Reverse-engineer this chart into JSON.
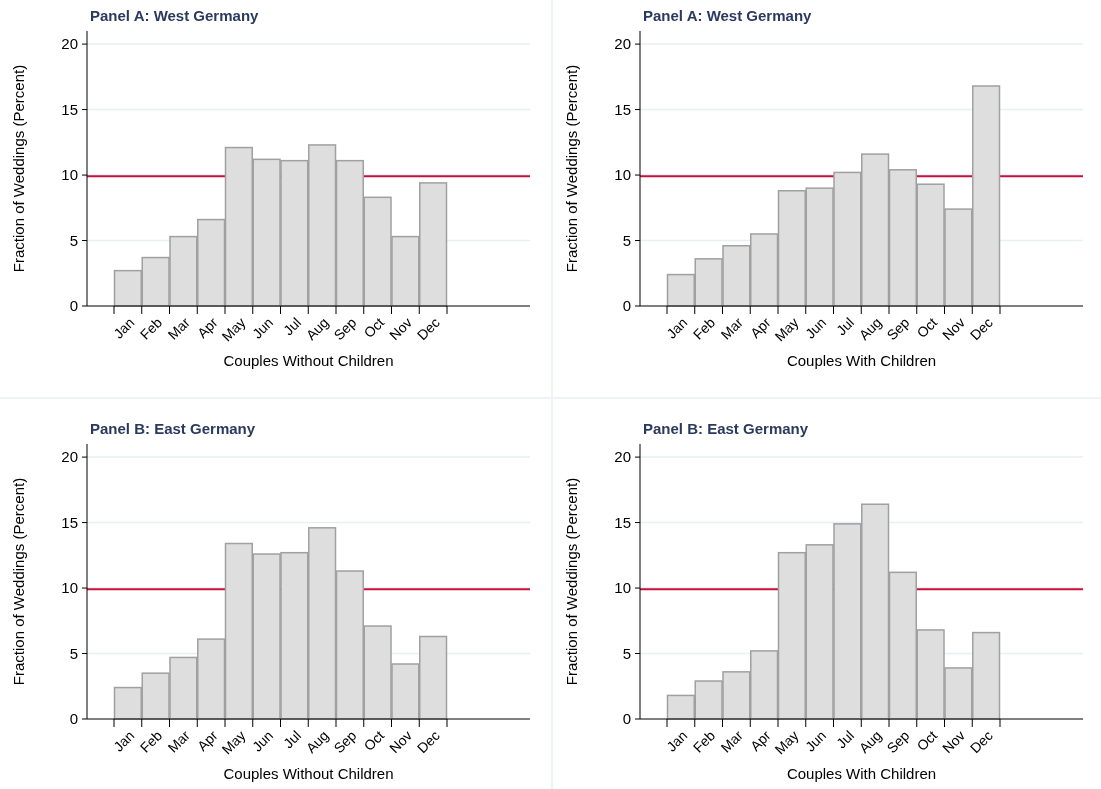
{
  "chart_data": [
    {
      "type": "bar",
      "title": "Panel A: West Germany",
      "xlabel": "Couples Without Children",
      "ylabel": "Fraction of Weddings (Percent)",
      "categories": [
        "Jan",
        "Feb",
        "Mar",
        "Apr",
        "May",
        "Jun",
        "Jul",
        "Aug",
        "Sep",
        "Oct",
        "Nov",
        "Dec"
      ],
      "values": [
        2.7,
        3.7,
        5.3,
        6.6,
        12.1,
        11.2,
        11.1,
        12.3,
        11.1,
        8.3,
        5.3,
        9.4
      ],
      "color": "#dedede",
      "ylim": [
        0,
        21
      ],
      "yticks": [
        0,
        5,
        10,
        15,
        20
      ],
      "grid": "y",
      "ref_lines": [
        {
          "axis": "y",
          "value": 9.9,
          "color": "#c8103c"
        }
      ]
    },
    {
      "type": "bar",
      "title": "Panel A: West Germany",
      "xlabel": "Couples With Children",
      "ylabel": "Fraction of Weddings (Percent)",
      "categories": [
        "Jan",
        "Feb",
        "Mar",
        "Apr",
        "May",
        "Jun",
        "Jul",
        "Aug",
        "Sep",
        "Oct",
        "Nov",
        "Dec"
      ],
      "values": [
        2.4,
        3.6,
        4.6,
        5.5,
        8.8,
        9.0,
        10.2,
        11.6,
        10.4,
        9.3,
        7.4,
        16.8
      ],
      "color": "#dedede",
      "ylim": [
        0,
        21
      ],
      "yticks": [
        0,
        5,
        10,
        15,
        20
      ],
      "grid": "y",
      "ref_lines": [
        {
          "axis": "y",
          "value": 9.9,
          "color": "#c8103c"
        }
      ]
    },
    {
      "type": "bar",
      "title": "Panel B: East Germany",
      "xlabel": "Couples Without Children",
      "ylabel": "Fraction of Weddings (Percent)",
      "categories": [
        "Jan",
        "Feb",
        "Mar",
        "Apr",
        "May",
        "Jun",
        "Jul",
        "Aug",
        "Sep",
        "Oct",
        "Nov",
        "Dec"
      ],
      "values": [
        2.4,
        3.5,
        4.7,
        6.1,
        13.4,
        12.6,
        12.7,
        14.6,
        11.3,
        7.1,
        4.2,
        6.3
      ],
      "color": "#dedede",
      "ylim": [
        0,
        21
      ],
      "yticks": [
        0,
        5,
        10,
        15,
        20
      ],
      "grid": "y",
      "ref_lines": [
        {
          "axis": "y",
          "value": 9.9,
          "color": "#c8103c"
        }
      ]
    },
    {
      "type": "bar",
      "title": "Panel B: East Germany",
      "xlabel": "Couples With Children",
      "ylabel": "Fraction of Weddings (Percent)",
      "categories": [
        "Jan",
        "Feb",
        "Mar",
        "Apr",
        "May",
        "Jun",
        "Jul",
        "Aug",
        "Sep",
        "Oct",
        "Nov",
        "Dec"
      ],
      "values": [
        1.8,
        2.9,
        3.6,
        5.2,
        12.7,
        13.3,
        14.9,
        16.4,
        11.2,
        6.8,
        3.9,
        6.6
      ],
      "color": "#dedede",
      "ylim": [
        0,
        21
      ],
      "yticks": [
        0,
        5,
        10,
        15,
        20
      ],
      "grid": "y",
      "ref_lines": [
        {
          "axis": "y",
          "value": 9.9,
          "color": "#c8103c"
        }
      ]
    }
  ]
}
